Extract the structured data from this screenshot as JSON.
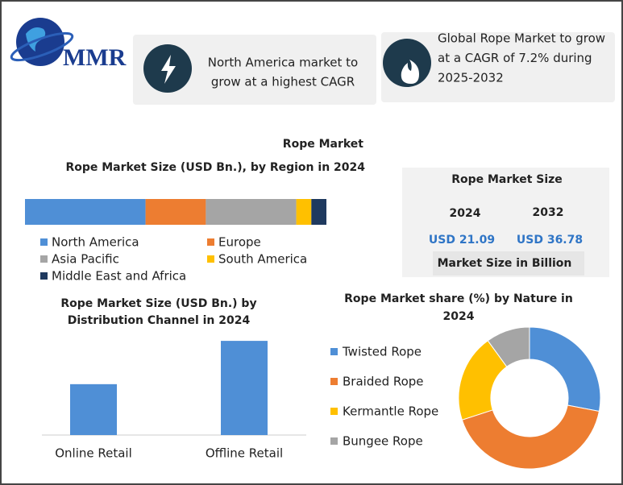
{
  "header": {
    "logo": "MMR",
    "cards": [
      {
        "lines": [
          "North America market to",
          "grow at a highest CAGR"
        ]
      },
      {
        "lines": [
          "Global Rope Market to grow",
          "at a CAGR of 7.2% during",
          "2025-2032"
        ]
      }
    ]
  },
  "section_title": "Rope Market",
  "market_size": {
    "title": "Rope Market Size",
    "years": [
      "2024",
      "2032"
    ],
    "values": [
      "USD 21.09",
      "USD 36.78"
    ],
    "note": "Market Size in Billion"
  },
  "chart_data": [
    {
      "type": "stacked-bar",
      "title": "Rope Market Size (USD Bn.), by Region in 2024",
      "xlim": [
        0,
        100
      ],
      "series": [
        {
          "name": "North America",
          "color": "#4f8fd6",
          "values": [
            40
          ]
        },
        {
          "name": "Europe",
          "color": "#ed7d31",
          "values": [
            20
          ]
        },
        {
          "name": "Asia Pacific",
          "color": "#a5a5a5",
          "values": [
            30
          ]
        },
        {
          "name": "South America",
          "color": "#ffc000",
          "values": [
            5
          ]
        },
        {
          "name": "Middle East and Africa",
          "color": "#1f3a5f",
          "values": [
            5
          ]
        }
      ]
    },
    {
      "type": "bar",
      "title_lines": [
        "Rope Market Size (USD Bn.) by",
        "Distribution Channel in 2024"
      ],
      "categories": [
        "Online Retail",
        "Offline Retail"
      ],
      "values": [
        7.4,
        13.7
      ],
      "color": "#4f8fd6",
      "ylim": [
        0,
        15
      ]
    },
    {
      "type": "donut",
      "title_lines": [
        "Rope Market share (%) by Nature in",
        "2024"
      ],
      "categories": [
        "Twisted Rope",
        "Braided Rope",
        "Kermantle Rope",
        "Bungee Rope"
      ],
      "values": [
        28,
        42,
        20,
        10
      ],
      "colors": [
        "#4f8fd6",
        "#ed7d31",
        "#ffc000",
        "#a5a5a5"
      ]
    }
  ]
}
